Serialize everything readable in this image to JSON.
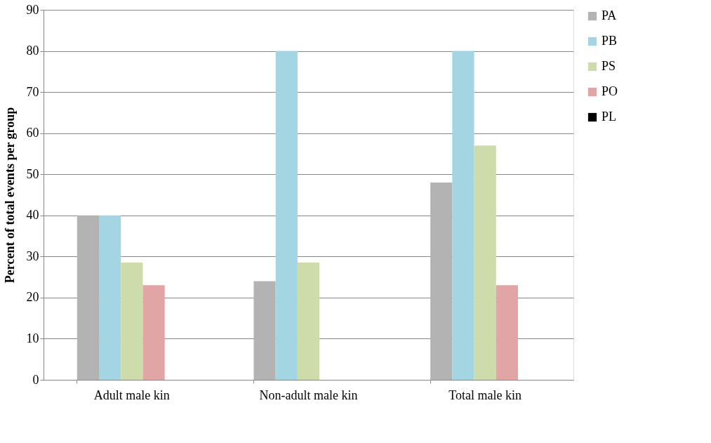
{
  "chart_data": {
    "type": "bar",
    "ylabel": "Percent of total events per group",
    "categories": [
      "Adult male kin",
      "Non-adult male kin",
      "Total male kin"
    ],
    "series": [
      {
        "name": "PA",
        "color": "#b3b3b3",
        "values": [
          40,
          24,
          48
        ]
      },
      {
        "name": "PB",
        "color": "#a3d5e3",
        "values": [
          40,
          80,
          80
        ]
      },
      {
        "name": "PS",
        "color": "#cddcaa",
        "values": [
          28.5,
          28.5,
          57
        ]
      },
      {
        "name": "PO",
        "color": "#e0a5a4",
        "values": [
          23,
          0,
          23
        ]
      },
      {
        "name": "PL",
        "color": "#000000",
        "values": [
          0,
          0,
          0
        ]
      }
    ],
    "ylim": [
      0,
      90
    ],
    "yticks": [
      0,
      10,
      20,
      30,
      40,
      50,
      60,
      70,
      80,
      90
    ],
    "grid": "y",
    "legend": "right"
  }
}
